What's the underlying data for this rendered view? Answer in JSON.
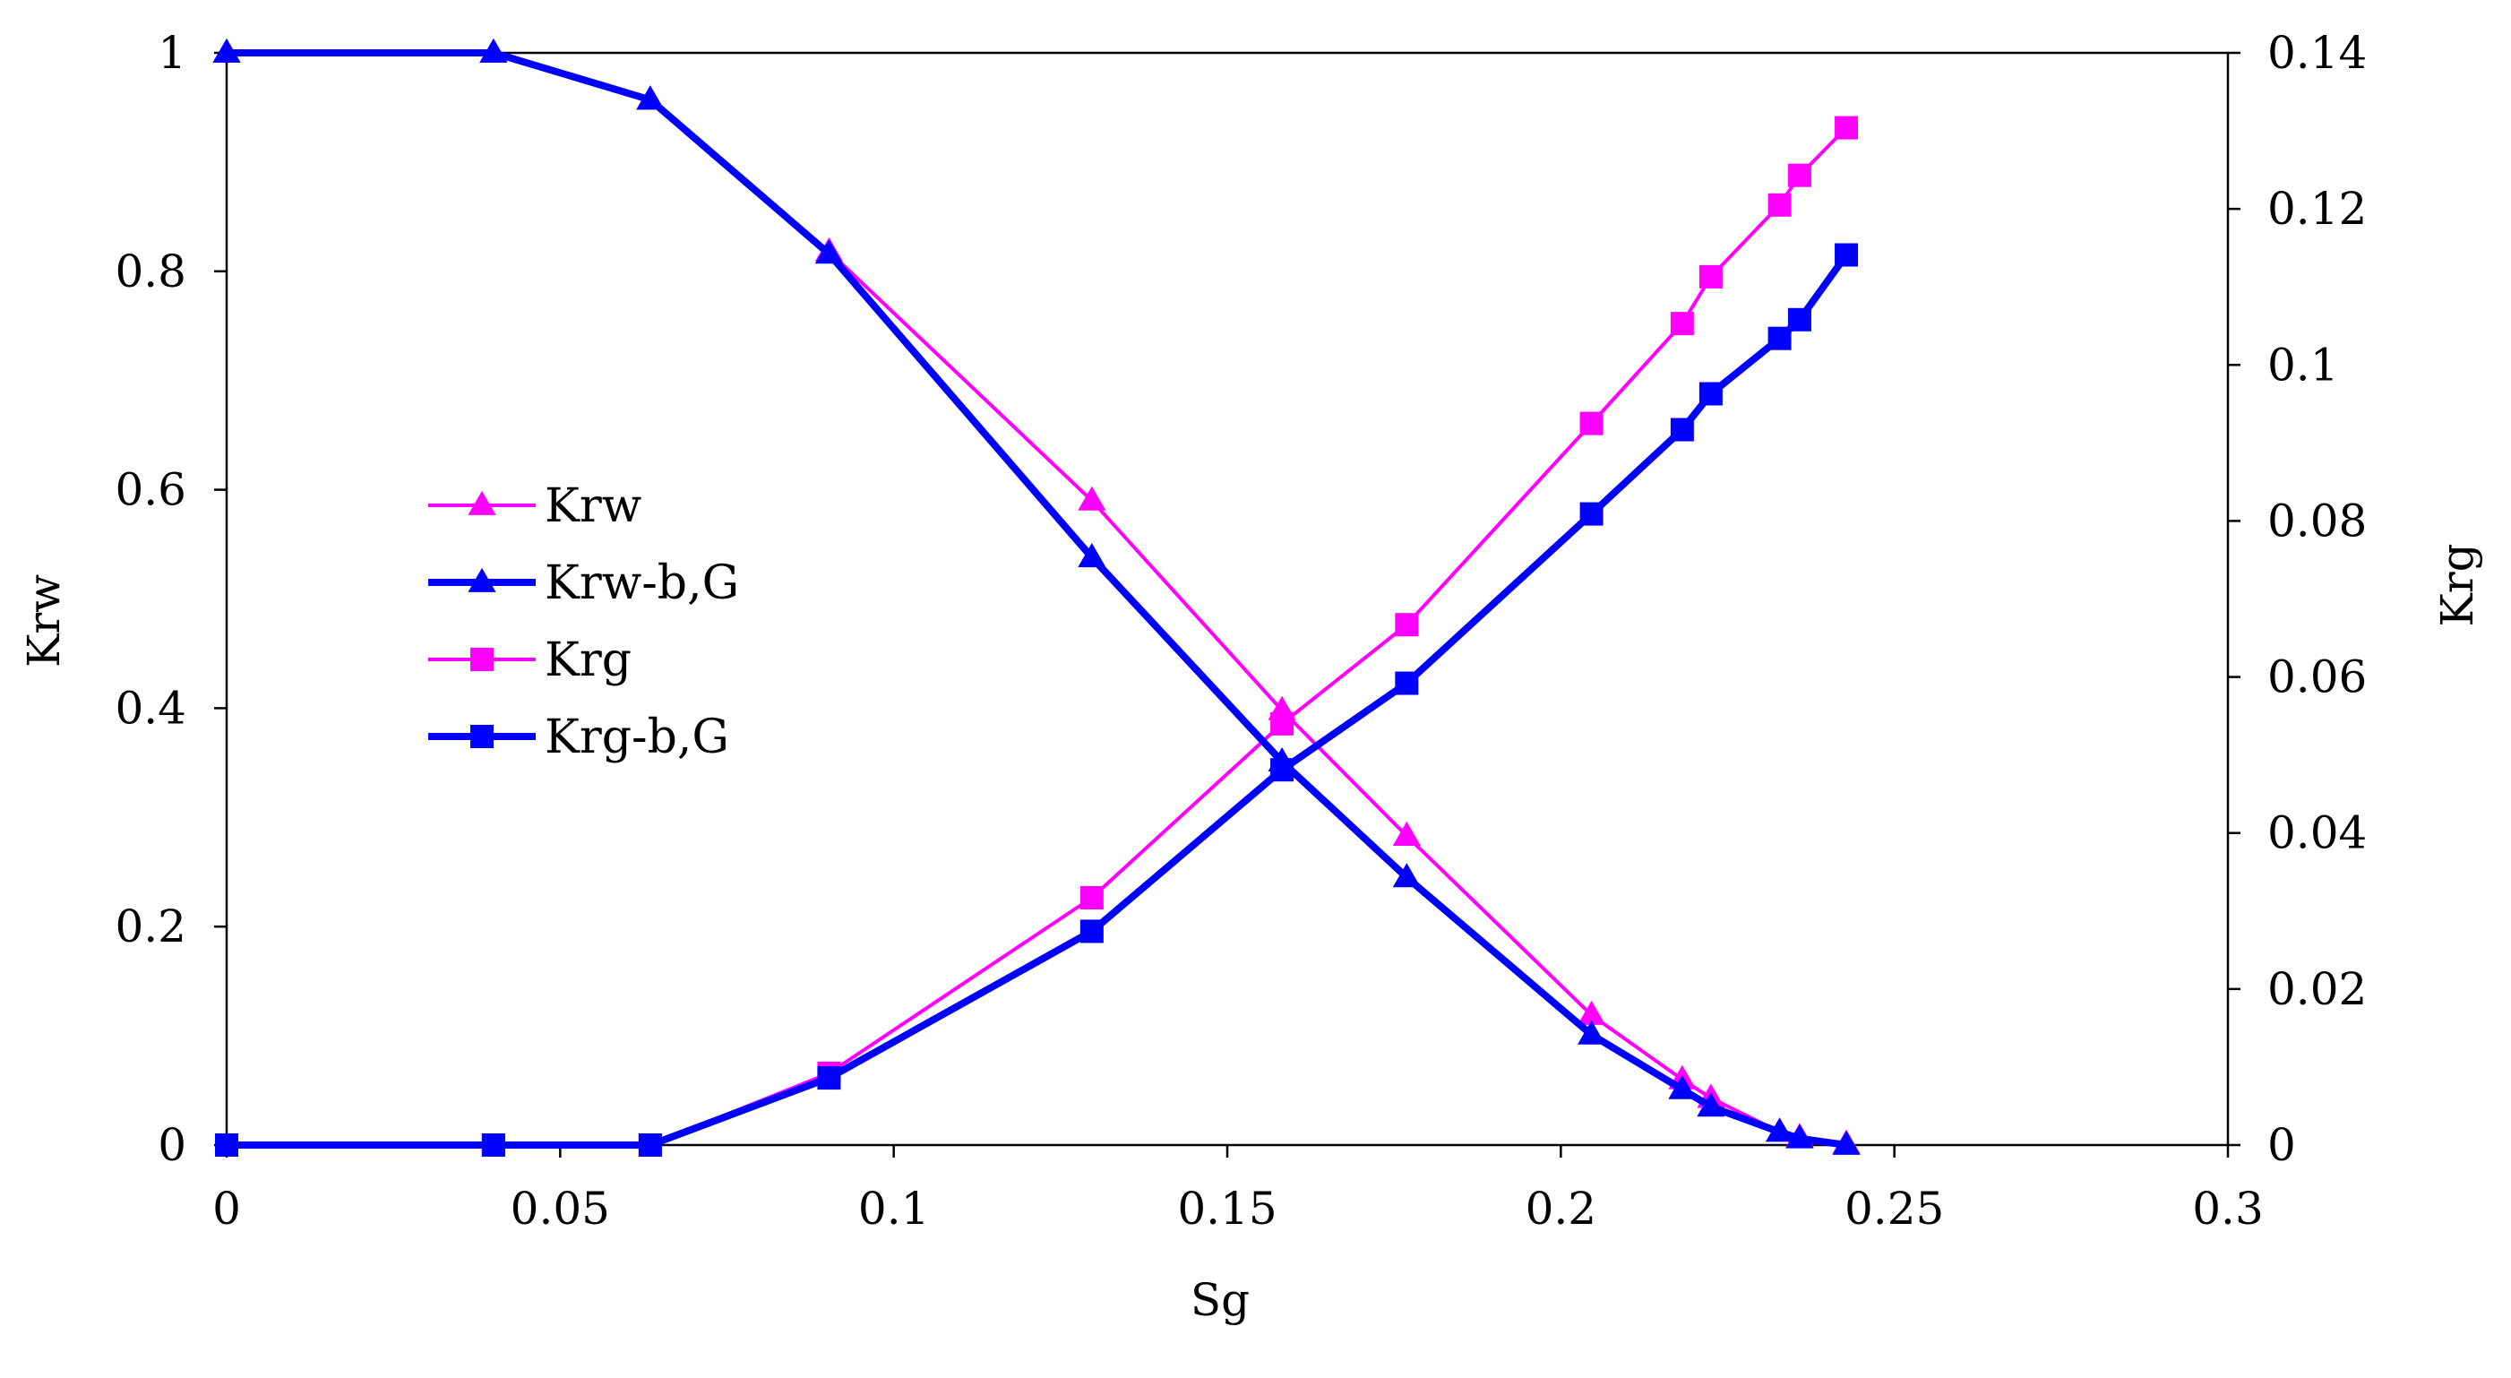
{
  "chart_data": {
    "type": "line",
    "title": "",
    "xlabel": "Sg",
    "ylabel_left": "Krw",
    "ylabel_right": "Krg",
    "xlim": [
      0,
      0.3
    ],
    "ylim_left": [
      0,
      1
    ],
    "ylim_right": [
      0,
      0.14
    ],
    "xticks": [
      "0",
      "0.05",
      "0.1",
      "0.15",
      "0.2",
      "0.25",
      "0.3"
    ],
    "yticks_left": [
      "0",
      "0.2",
      "0.4",
      "0.6",
      "0.8",
      "1"
    ],
    "yticks_right": [
      "0",
      "0.02",
      "0.04",
      "0.06",
      "0.08",
      "0.1",
      "0.12",
      "0.14"
    ],
    "grid": false,
    "legend_position": "center-left",
    "series": [
      {
        "name": "Krw",
        "axis": "left",
        "color": "#ff00ff",
        "marker": "triangle",
        "line_width": "thin",
        "x": [
          0,
          0.04,
          0.0635,
          0.0903,
          0.1297,
          0.1582,
          0.1769,
          0.2046,
          0.2182,
          0.2225,
          0.2328,
          0.2358,
          0.2428
        ],
        "y": [
          1.0,
          1.0,
          0.957,
          0.818,
          0.59,
          0.398,
          0.283,
          0.119,
          0.06,
          0.043,
          0.012,
          0.007,
          0.001
        ]
      },
      {
        "name": "Krw-b,G",
        "axis": "left",
        "color": "#0000ff",
        "marker": "triangle",
        "line_width": "thick",
        "x": [
          0,
          0.04,
          0.0635,
          0.0903,
          0.1297,
          0.1582,
          0.1769,
          0.2046,
          0.2182,
          0.2225,
          0.2328,
          0.2358,
          0.2428
        ],
        "y": [
          1.0,
          1.0,
          0.957,
          0.816,
          0.538,
          0.351,
          0.245,
          0.101,
          0.051,
          0.035,
          0.012,
          0.006,
          0.0
        ]
      },
      {
        "name": "Krg",
        "axis": "right",
        "color": "#ff00ff",
        "marker": "square",
        "line_width": "thin",
        "x": [
          0,
          0.04,
          0.0635,
          0.0903,
          0.1297,
          0.1582,
          0.1769,
          0.2046,
          0.2182,
          0.2225,
          0.2328,
          0.2358,
          0.2428
        ],
        "y": [
          0,
          0,
          0,
          0.0092,
          0.0317,
          0.054,
          0.0667,
          0.0925,
          0.1053,
          0.1113,
          0.1205,
          0.1243,
          0.1304
        ]
      },
      {
        "name": "Krg-b,G",
        "axis": "right",
        "color": "#0000ff",
        "marker": "square",
        "line_width": "thick",
        "x": [
          0,
          0.04,
          0.0635,
          0.0903,
          0.1297,
          0.1582,
          0.1769,
          0.2046,
          0.2182,
          0.2225,
          0.2328,
          0.2358,
          0.2428
        ],
        "y": [
          0,
          0,
          0,
          0.0086,
          0.0274,
          0.0481,
          0.0592,
          0.0809,
          0.0917,
          0.0963,
          0.1034,
          0.1058,
          0.1141
        ]
      }
    ]
  }
}
